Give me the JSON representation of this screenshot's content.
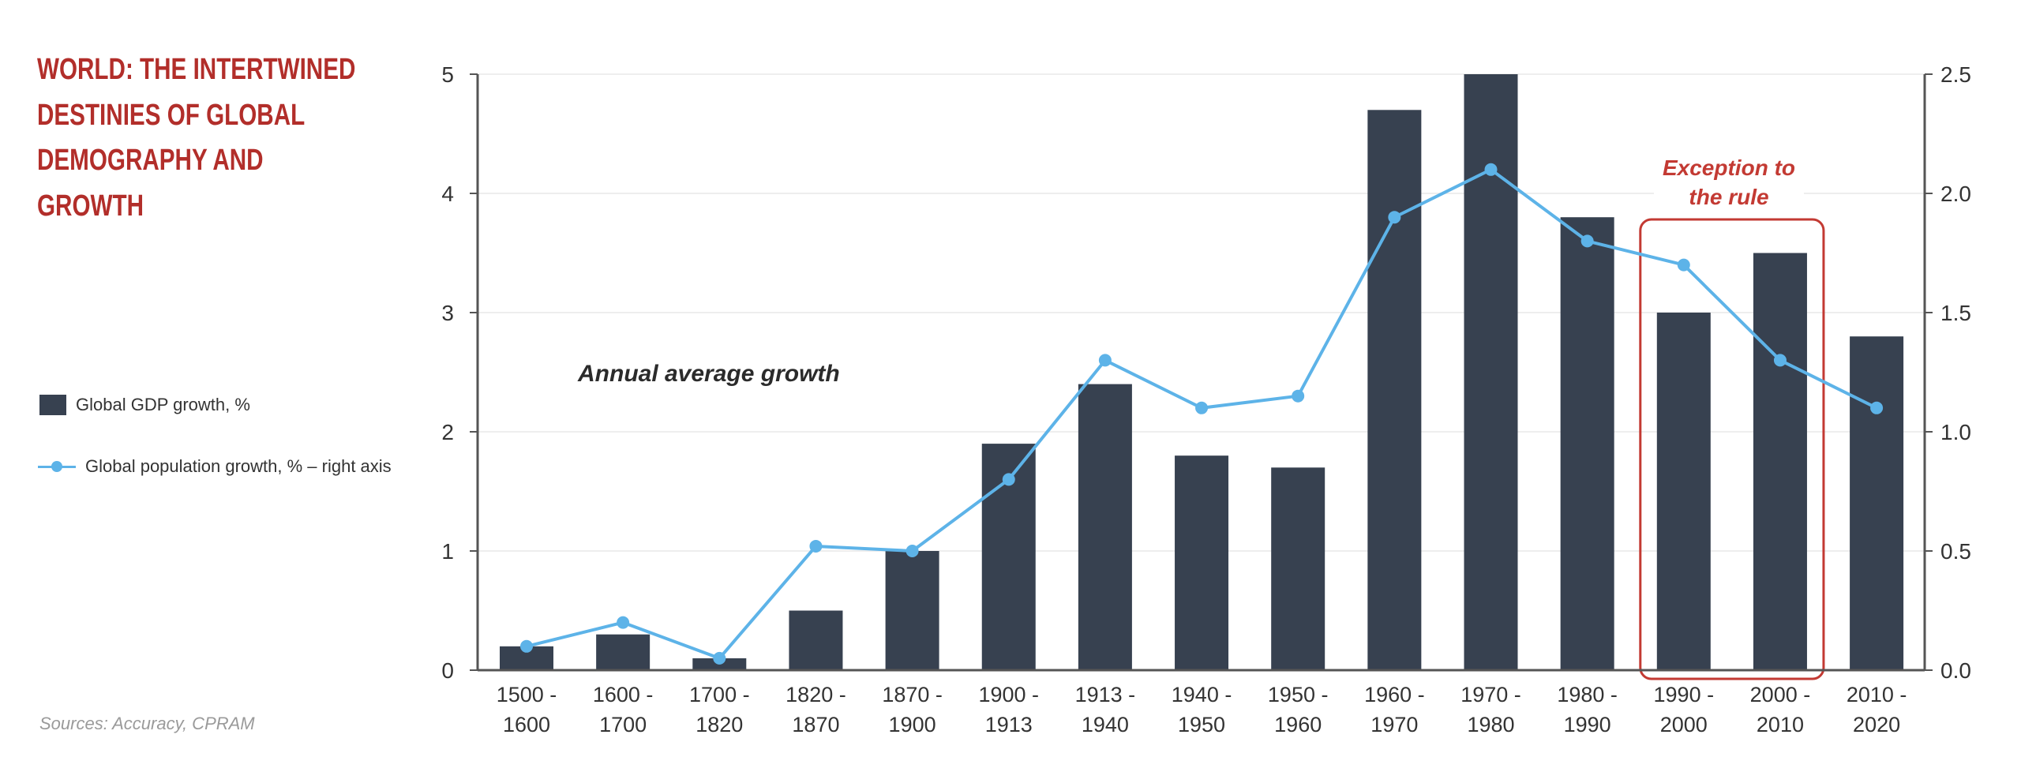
{
  "title_lines": [
    "WORLD: THE INTERTWINED",
    "DESTINIES OF GLOBAL",
    "DEMOGRAPHY  AND",
    "GROWTH"
  ],
  "legend": [
    {
      "label": "Global GDP growth, %",
      "type": "bar"
    },
    {
      "label": "Global population growth, % – right axis",
      "type": "line"
    }
  ],
  "source": "Sources: Accuracy, CPRAM",
  "colors": {
    "title": "#B22E2A",
    "bar": "#374150",
    "line": "#5DB3E8",
    "highlight": "#C33A33",
    "axis": "#555555",
    "grid": "#EEEEEE"
  },
  "chart_data": {
    "type": "bar",
    "title": "WORLD: THE INTERTWINED DESTINIES OF GLOBAL DEMOGRAPHY AND GROWTH",
    "categories": [
      [
        "1500 -",
        "1600"
      ],
      [
        "1600 -",
        "1700"
      ],
      [
        "1700 -",
        "1820"
      ],
      [
        "1820 -",
        "1870"
      ],
      [
        "1870 -",
        "1900"
      ],
      [
        "1900 -",
        "1913"
      ],
      [
        "1913 -",
        "1940"
      ],
      [
        "1940 -",
        "1950"
      ],
      [
        "1950 -",
        "1960"
      ],
      [
        "1960 -",
        "1970"
      ],
      [
        "1970 -",
        "1980"
      ],
      [
        "1980 -",
        "1990"
      ],
      [
        "1990 -",
        "2000"
      ],
      [
        "2000 -",
        "2010"
      ],
      [
        "2010 -",
        "2020"
      ]
    ],
    "series": [
      {
        "name": "Global GDP growth, %",
        "type": "bar",
        "axis": "left",
        "values": [
          0.2,
          0.3,
          0.1,
          0.5,
          1.0,
          1.9,
          2.4,
          1.8,
          1.7,
          4.7,
          5.0,
          3.8,
          3.0,
          3.5,
          2.8
        ]
      },
      {
        "name": "Global population growth, % – right axis",
        "type": "line",
        "axis": "right",
        "values": [
          0.1,
          0.2,
          0.05,
          0.52,
          0.5,
          0.8,
          1.3,
          1.1,
          1.15,
          1.9,
          2.1,
          1.8,
          1.7,
          1.3,
          1.1
        ]
      }
    ],
    "left_axis": {
      "ylim": [
        0,
        5
      ],
      "ticks": [
        "0",
        "1",
        "2",
        "3",
        "4",
        "5"
      ]
    },
    "right_axis": {
      "ylim": [
        0,
        2.5
      ],
      "ticks": [
        "0.0",
        "0.5",
        "1.0",
        "1.5",
        "2.0",
        "2.5"
      ]
    },
    "xlabel": "",
    "ylabel": "",
    "grid": true,
    "annotations": [
      {
        "text": "Annual average growth",
        "style": "italic-bold"
      },
      {
        "text_lines": [
          "Exception to",
          "the rule"
        ],
        "highlight_categories": [
          "1990 - 2000",
          "2000 - 2010"
        ],
        "style": "red-box"
      }
    ],
    "legend_position": "left"
  }
}
